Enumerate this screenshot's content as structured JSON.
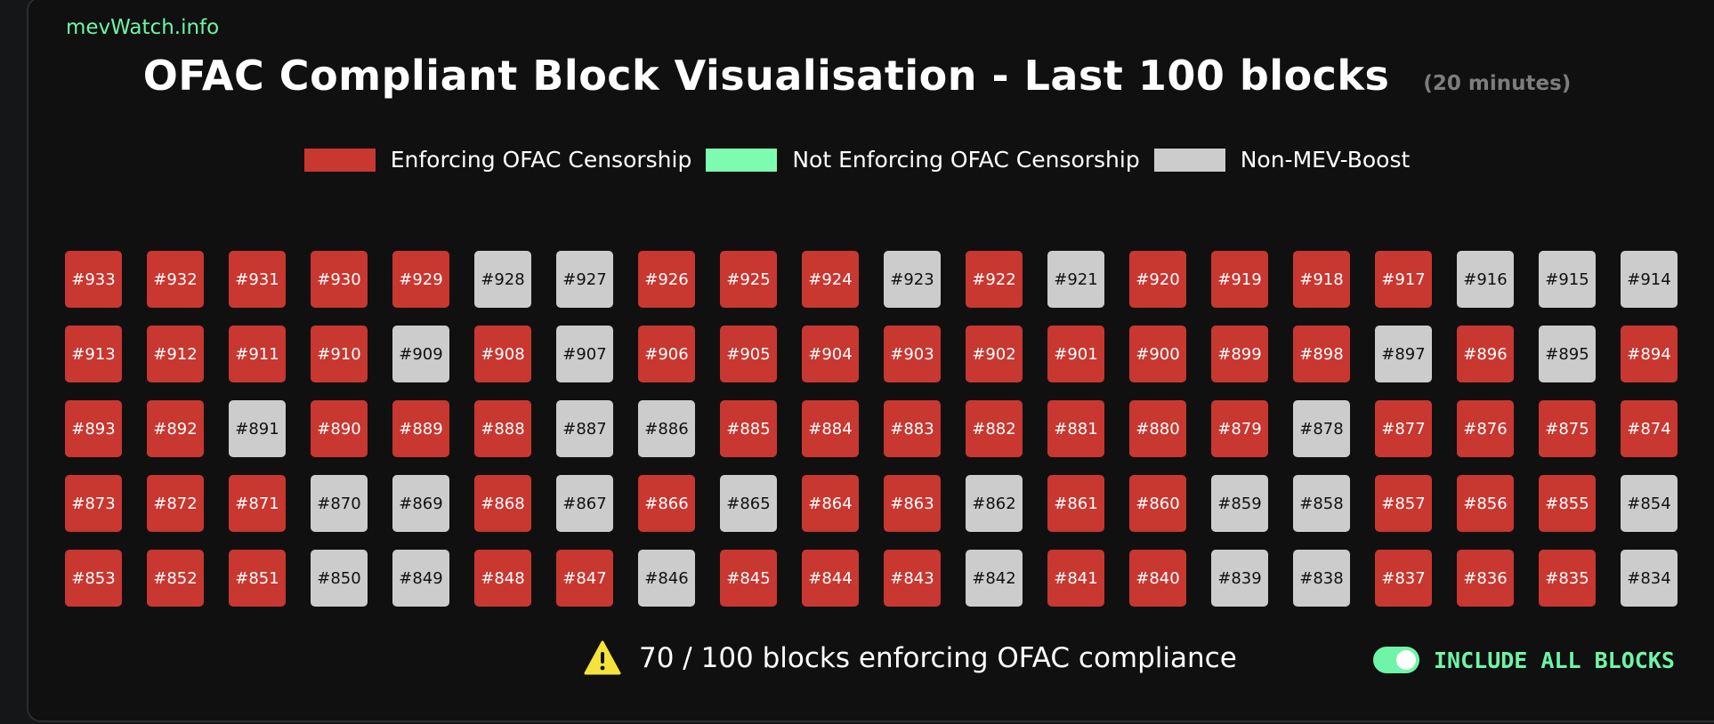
{
  "brand": "mevWatch.info",
  "title": "OFAC Compliant Block Visualisation - Last 100 blocks",
  "subtitle": "(20 minutes)",
  "legend": [
    {
      "label": "Enforcing OFAC Censorship",
      "color": "#c83730",
      "key": "enforcing"
    },
    {
      "label": "Not Enforcing OFAC Censorship",
      "color": "#7dfcb0",
      "key": "not-enforcing"
    },
    {
      "label": "Non-MEV-Boost",
      "color": "#cccccc",
      "key": "non-mev"
    }
  ],
  "blocks": [
    {
      "label": "#933",
      "status": "enforcing"
    },
    {
      "label": "#932",
      "status": "enforcing"
    },
    {
      "label": "#931",
      "status": "enforcing"
    },
    {
      "label": "#930",
      "status": "enforcing"
    },
    {
      "label": "#929",
      "status": "enforcing"
    },
    {
      "label": "#928",
      "status": "non-mev"
    },
    {
      "label": "#927",
      "status": "non-mev"
    },
    {
      "label": "#926",
      "status": "enforcing"
    },
    {
      "label": "#925",
      "status": "enforcing"
    },
    {
      "label": "#924",
      "status": "enforcing"
    },
    {
      "label": "#923",
      "status": "non-mev"
    },
    {
      "label": "#922",
      "status": "enforcing"
    },
    {
      "label": "#921",
      "status": "non-mev"
    },
    {
      "label": "#920",
      "status": "enforcing"
    },
    {
      "label": "#919",
      "status": "enforcing"
    },
    {
      "label": "#918",
      "status": "enforcing"
    },
    {
      "label": "#917",
      "status": "enforcing"
    },
    {
      "label": "#916",
      "status": "non-mev"
    },
    {
      "label": "#915",
      "status": "non-mev"
    },
    {
      "label": "#914",
      "status": "non-mev"
    },
    {
      "label": "#913",
      "status": "enforcing"
    },
    {
      "label": "#912",
      "status": "enforcing"
    },
    {
      "label": "#911",
      "status": "enforcing"
    },
    {
      "label": "#910",
      "status": "enforcing"
    },
    {
      "label": "#909",
      "status": "non-mev"
    },
    {
      "label": "#908",
      "status": "enforcing"
    },
    {
      "label": "#907",
      "status": "non-mev"
    },
    {
      "label": "#906",
      "status": "enforcing"
    },
    {
      "label": "#905",
      "status": "enforcing"
    },
    {
      "label": "#904",
      "status": "enforcing"
    },
    {
      "label": "#903",
      "status": "enforcing"
    },
    {
      "label": "#902",
      "status": "enforcing"
    },
    {
      "label": "#901",
      "status": "enforcing"
    },
    {
      "label": "#900",
      "status": "enforcing"
    },
    {
      "label": "#899",
      "status": "enforcing"
    },
    {
      "label": "#898",
      "status": "enforcing"
    },
    {
      "label": "#897",
      "status": "non-mev"
    },
    {
      "label": "#896",
      "status": "enforcing"
    },
    {
      "label": "#895",
      "status": "non-mev"
    },
    {
      "label": "#894",
      "status": "enforcing"
    },
    {
      "label": "#893",
      "status": "enforcing"
    },
    {
      "label": "#892",
      "status": "enforcing"
    },
    {
      "label": "#891",
      "status": "non-mev"
    },
    {
      "label": "#890",
      "status": "enforcing"
    },
    {
      "label": "#889",
      "status": "enforcing"
    },
    {
      "label": "#888",
      "status": "enforcing"
    },
    {
      "label": "#887",
      "status": "non-mev"
    },
    {
      "label": "#886",
      "status": "non-mev"
    },
    {
      "label": "#885",
      "status": "enforcing"
    },
    {
      "label": "#884",
      "status": "enforcing"
    },
    {
      "label": "#883",
      "status": "enforcing"
    },
    {
      "label": "#882",
      "status": "enforcing"
    },
    {
      "label": "#881",
      "status": "enforcing"
    },
    {
      "label": "#880",
      "status": "enforcing"
    },
    {
      "label": "#879",
      "status": "enforcing"
    },
    {
      "label": "#878",
      "status": "non-mev"
    },
    {
      "label": "#877",
      "status": "enforcing"
    },
    {
      "label": "#876",
      "status": "enforcing"
    },
    {
      "label": "#875",
      "status": "enforcing"
    },
    {
      "label": "#874",
      "status": "enforcing"
    },
    {
      "label": "#873",
      "status": "enforcing"
    },
    {
      "label": "#872",
      "status": "enforcing"
    },
    {
      "label": "#871",
      "status": "enforcing"
    },
    {
      "label": "#870",
      "status": "non-mev"
    },
    {
      "label": "#869",
      "status": "non-mev"
    },
    {
      "label": "#868",
      "status": "enforcing"
    },
    {
      "label": "#867",
      "status": "non-mev"
    },
    {
      "label": "#866",
      "status": "enforcing"
    },
    {
      "label": "#865",
      "status": "non-mev"
    },
    {
      "label": "#864",
      "status": "enforcing"
    },
    {
      "label": "#863",
      "status": "enforcing"
    },
    {
      "label": "#862",
      "status": "non-mev"
    },
    {
      "label": "#861",
      "status": "enforcing"
    },
    {
      "label": "#860",
      "status": "enforcing"
    },
    {
      "label": "#859",
      "status": "non-mev"
    },
    {
      "label": "#858",
      "status": "non-mev"
    },
    {
      "label": "#857",
      "status": "enforcing"
    },
    {
      "label": "#856",
      "status": "enforcing"
    },
    {
      "label": "#855",
      "status": "enforcing"
    },
    {
      "label": "#854",
      "status": "non-mev"
    },
    {
      "label": "#853",
      "status": "enforcing"
    },
    {
      "label": "#852",
      "status": "enforcing"
    },
    {
      "label": "#851",
      "status": "enforcing"
    },
    {
      "label": "#850",
      "status": "non-mev"
    },
    {
      "label": "#849",
      "status": "non-mev"
    },
    {
      "label": "#848",
      "status": "enforcing"
    },
    {
      "label": "#847",
      "status": "enforcing"
    },
    {
      "label": "#846",
      "status": "non-mev"
    },
    {
      "label": "#845",
      "status": "enforcing"
    },
    {
      "label": "#844",
      "status": "enforcing"
    },
    {
      "label": "#843",
      "status": "enforcing"
    },
    {
      "label": "#842",
      "status": "non-mev"
    },
    {
      "label": "#841",
      "status": "enforcing"
    },
    {
      "label": "#840",
      "status": "enforcing"
    },
    {
      "label": "#839",
      "status": "non-mev"
    },
    {
      "label": "#838",
      "status": "non-mev"
    },
    {
      "label": "#837",
      "status": "enforcing"
    },
    {
      "label": "#836",
      "status": "enforcing"
    },
    {
      "label": "#835",
      "status": "enforcing"
    },
    {
      "label": "#834",
      "status": "non-mev"
    }
  ],
  "summary": {
    "text": "70 / 100 blocks enforcing OFAC compliance",
    "icon": "warning-icon",
    "icon_color": "#f5e33b"
  },
  "toggle": {
    "label": "INCLUDE ALL BLOCKS",
    "on": true,
    "color": "#6ef5a8"
  }
}
